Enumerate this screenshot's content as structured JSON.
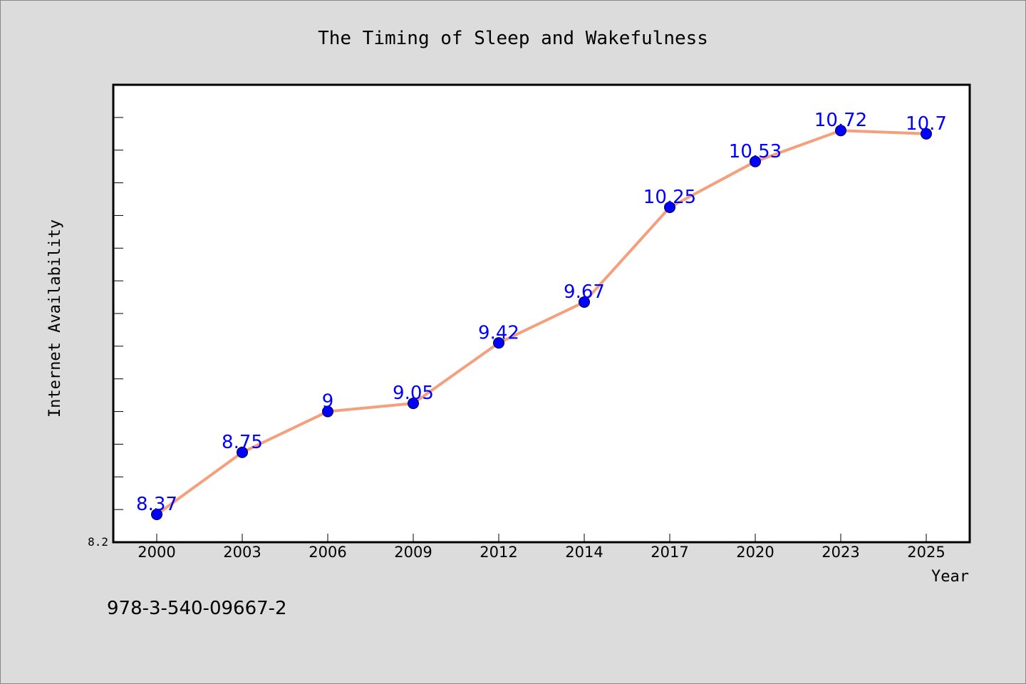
{
  "chart_data": {
    "type": "line",
    "title": "The Timing of Sleep and Wakefulness",
    "xlabel": "Year",
    "ylabel": "Internet Availability",
    "categories": [
      "2000",
      "2003",
      "2006",
      "2009",
      "2012",
      "2014",
      "2017",
      "2020",
      "2023",
      "2025"
    ],
    "series": [
      {
        "values": [
          8.37,
          8.75,
          9.0,
          9.05,
          9.42,
          9.67,
          10.25,
          10.53,
          10.72,
          10.7
        ],
        "data_labels": [
          "8.37",
          "8.75",
          "9",
          "9.05",
          "9.42",
          "9.67",
          "10.25",
          "10.53",
          "10.72",
          "10.7"
        ],
        "line_color": "#f4a07c",
        "marker_color": "#0000ff"
      }
    ],
    "ylim": [
      8.2,
      11.0
    ],
    "ytick_labels": [
      "8.2"
    ],
    "grid": false,
    "legend": "none",
    "label_color": "#0000ff"
  },
  "footer": {
    "isbn": "978-3-540-09667-2"
  },
  "colors": {
    "background": "#dcdcdc",
    "plot_background": "#ffffff",
    "axis": "#000000"
  }
}
